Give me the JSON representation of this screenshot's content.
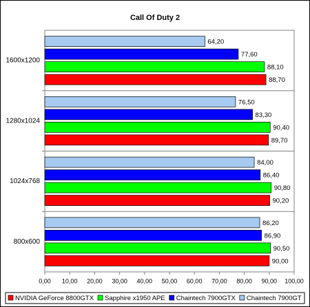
{
  "chart_data": {
    "type": "bar",
    "orientation": "horizontal",
    "title": "Call Of Duty 2",
    "categories": [
      "1600x1200",
      "1280x1024",
      "1024x768",
      "800x600"
    ],
    "series": [
      {
        "name": "NVIDIA GeForce 8800GTX",
        "color": "#ff0000",
        "values": [
          88.7,
          89.7,
          90.2,
          90.0
        ],
        "value_labels": [
          "88,70",
          "89,70",
          "90,20",
          "90,00"
        ]
      },
      {
        "name": "Sapphire x1950 APE",
        "color": "#00ff00",
        "values": [
          88.1,
          90.4,
          90.8,
          90.5
        ],
        "value_labels": [
          "88,10",
          "90,40",
          "90,80",
          "90,50"
        ]
      },
      {
        "name": "Chaintech 7900GTX",
        "color": "#0000ff",
        "values": [
          77.6,
          83.3,
          86.4,
          86.9
        ],
        "value_labels": [
          "77,60",
          "83,30",
          "86,40",
          "86,90"
        ]
      },
      {
        "name": "Chaintech 7900GT",
        "color": "#a6caf0",
        "values": [
          64.2,
          76.5,
          84.0,
          86.2
        ],
        "value_labels": [
          "64,20",
          "76,50",
          "84,00",
          "86,20"
        ]
      }
    ],
    "xlim": [
      0,
      100
    ],
    "xticks": [
      {
        "value": 0,
        "label": "0,00"
      },
      {
        "value": 10,
        "label": "10,00"
      },
      {
        "value": 20,
        "label": "20,00"
      },
      {
        "value": 30,
        "label": "30,00"
      },
      {
        "value": 40,
        "label": "40,00"
      },
      {
        "value": 50,
        "label": "50,00"
      },
      {
        "value": 60,
        "label": "60,00"
      },
      {
        "value": 70,
        "label": "70,00"
      },
      {
        "value": 80,
        "label": "80,00"
      },
      {
        "value": 90,
        "label": "90,00"
      },
      {
        "value": 100,
        "label": "100,00"
      }
    ],
    "legend": "bottom"
  }
}
